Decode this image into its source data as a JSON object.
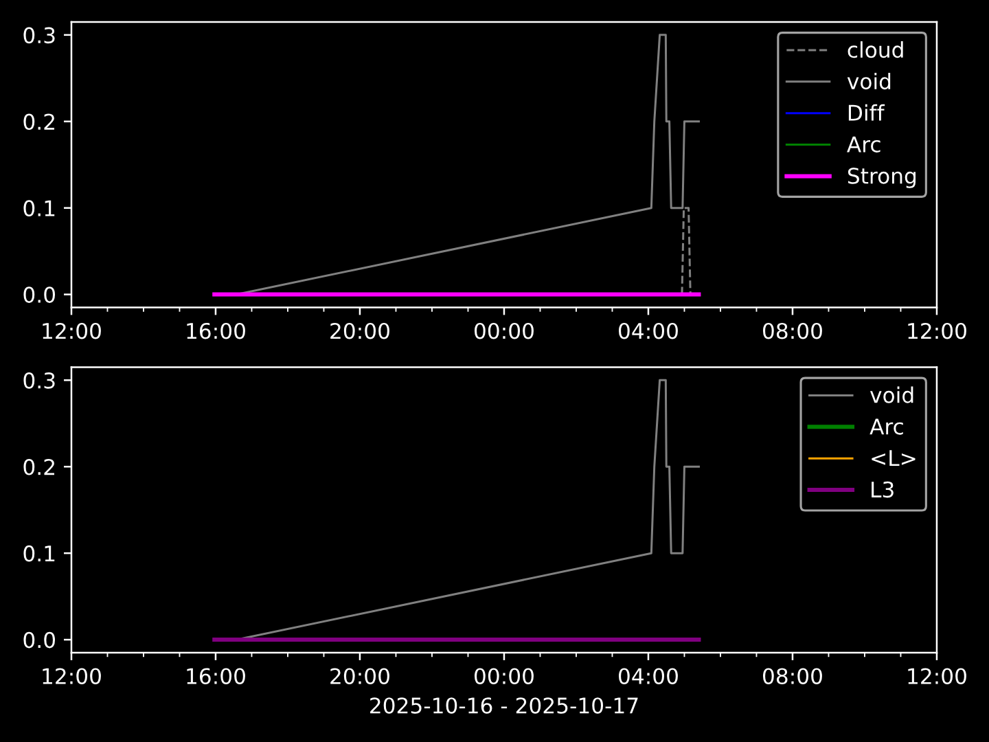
{
  "chart_data": [
    {
      "type": "line",
      "xlim": [
        "2025-10-16T12:00",
        "2025-10-17T12:00"
      ],
      "xticks": [
        {
          "value": "2025-10-16T12:00",
          "label": "12:00"
        },
        {
          "value": "2025-10-16T13:00",
          "label": null
        },
        {
          "value": "2025-10-16T14:00",
          "label": null
        },
        {
          "value": "2025-10-16T15:00",
          "label": null
        },
        {
          "value": "2025-10-16T16:00",
          "label": "16:00"
        },
        {
          "value": "2025-10-16T17:00",
          "label": null
        },
        {
          "value": "2025-10-16T18:00",
          "label": null
        },
        {
          "value": "2025-10-16T19:00",
          "label": null
        },
        {
          "value": "2025-10-16T20:00",
          "label": "20:00"
        },
        {
          "value": "2025-10-16T21:00",
          "label": null
        },
        {
          "value": "2025-10-16T22:00",
          "label": null
        },
        {
          "value": "2025-10-16T23:00",
          "label": null
        },
        {
          "value": "2025-10-17T00:00",
          "label": "00:00"
        },
        {
          "value": "2025-10-17T01:00",
          "label": null
        },
        {
          "value": "2025-10-17T02:00",
          "label": null
        },
        {
          "value": "2025-10-17T03:00",
          "label": null
        },
        {
          "value": "2025-10-17T04:00",
          "label": "04:00"
        },
        {
          "value": "2025-10-17T05:00",
          "label": null
        },
        {
          "value": "2025-10-17T06:00",
          "label": null
        },
        {
          "value": "2025-10-17T07:00",
          "label": null
        },
        {
          "value": "2025-10-17T08:00",
          "label": "08:00"
        },
        {
          "value": "2025-10-17T09:00",
          "label": null
        },
        {
          "value": "2025-10-17T10:00",
          "label": null
        },
        {
          "value": "2025-10-17T11:00",
          "label": null
        },
        {
          "value": "2025-10-17T12:00",
          "label": "12:00"
        }
      ],
      "ylim": [
        -0.015,
        0.315
      ],
      "yticks": [
        {
          "value": 0,
          "label": "0.0"
        },
        {
          "value": 0.1,
          "label": "0.1"
        },
        {
          "value": 0.2,
          "label": "0.2"
        },
        {
          "value": 0.3,
          "label": "0.3"
        }
      ],
      "legend": "top right",
      "series": [
        {
          "name": "cloud",
          "color": "#808080",
          "line_style": "dashed",
          "x": [
            "2025-10-17T04:56",
            "2025-10-17T04:59",
            "2025-10-17T05:07",
            "2025-10-17T05:10"
          ],
          "values": [
            0,
            0.1,
            0.1,
            0
          ]
        },
        {
          "name": "void",
          "color": "#808080",
          "x": [
            "2025-10-16T16:35",
            "2025-10-17T04:05",
            "2025-10-17T04:10",
            "2025-10-17T04:19",
            "2025-10-17T04:29",
            "2025-10-17T04:30",
            "2025-10-17T04:35",
            "2025-10-17T04:38",
            "2025-10-17T04:57",
            "2025-10-17T05:00",
            "2025-10-17T05:24"
          ],
          "values": [
            0,
            0.1,
            0.2,
            0.3,
            0.3,
            0.2,
            0.2,
            0.1,
            0.1,
            0.2,
            0.2
          ]
        },
        {
          "name": "Diff",
          "color": "#0000ff"
        },
        {
          "name": "Arc",
          "color": "#008000"
        },
        {
          "name": "Strong",
          "color": "#ff00ff",
          "x": [
            "2025-10-16T15:58",
            "2025-10-17T05:24"
          ],
          "values": [
            0,
            0
          ]
        }
      ]
    },
    {
      "type": "line",
      "xlabel": "2025-10-16 - 2025-10-17",
      "xlim": [
        "2025-10-16T12:00",
        "2025-10-17T12:00"
      ],
      "xticks": [
        {
          "value": "2025-10-16T12:00",
          "label": "12:00"
        },
        {
          "value": "2025-10-16T13:00",
          "label": null
        },
        {
          "value": "2025-10-16T14:00",
          "label": null
        },
        {
          "value": "2025-10-16T15:00",
          "label": null
        },
        {
          "value": "2025-10-16T16:00",
          "label": "16:00"
        },
        {
          "value": "2025-10-16T17:00",
          "label": null
        },
        {
          "value": "2025-10-16T18:00",
          "label": null
        },
        {
          "value": "2025-10-16T19:00",
          "label": null
        },
        {
          "value": "2025-10-16T20:00",
          "label": "20:00"
        },
        {
          "value": "2025-10-16T21:00",
          "label": null
        },
        {
          "value": "2025-10-16T22:00",
          "label": null
        },
        {
          "value": "2025-10-16T23:00",
          "label": null
        },
        {
          "value": "2025-10-17T00:00",
          "label": "00:00"
        },
        {
          "value": "2025-10-17T01:00",
          "label": null
        },
        {
          "value": "2025-10-17T02:00",
          "label": null
        },
        {
          "value": "2025-10-17T03:00",
          "label": null
        },
        {
          "value": "2025-10-17T04:00",
          "label": "04:00"
        },
        {
          "value": "2025-10-17T05:00",
          "label": null
        },
        {
          "value": "2025-10-17T06:00",
          "label": null
        },
        {
          "value": "2025-10-17T07:00",
          "label": null
        },
        {
          "value": "2025-10-17T08:00",
          "label": "08:00"
        },
        {
          "value": "2025-10-17T09:00",
          "label": null
        },
        {
          "value": "2025-10-17T10:00",
          "label": null
        },
        {
          "value": "2025-10-17T11:00",
          "label": null
        },
        {
          "value": "2025-10-17T12:00",
          "label": "12:00"
        }
      ],
      "ylim": [
        -0.015,
        0.315
      ],
      "yticks": [
        {
          "value": 0,
          "label": "0.0"
        },
        {
          "value": 0.1,
          "label": "0.1"
        },
        {
          "value": 0.2,
          "label": "0.2"
        },
        {
          "value": 0.3,
          "label": "0.3"
        }
      ],
      "legend": "top right",
      "series": [
        {
          "name": "void",
          "color": "#808080",
          "x": [
            "2025-10-16T16:35",
            "2025-10-17T04:05",
            "2025-10-17T04:10",
            "2025-10-17T04:19",
            "2025-10-17T04:29",
            "2025-10-17T04:30",
            "2025-10-17T04:35",
            "2025-10-17T04:38",
            "2025-10-17T04:57",
            "2025-10-17T05:00",
            "2025-10-17T05:24"
          ],
          "values": [
            0,
            0.1,
            0.2,
            0.3,
            0.3,
            0.2,
            0.2,
            0.1,
            0.1,
            0.2,
            0.2
          ]
        },
        {
          "name": "Arc",
          "color": "#008000"
        },
        {
          "name": "<L>",
          "color": "#ffa500"
        },
        {
          "name": "L3",
          "color": "#800080",
          "x": [
            "2025-10-16T15:58",
            "2025-10-17T05:24"
          ],
          "values": [
            0,
            0
          ]
        }
      ]
    }
  ]
}
